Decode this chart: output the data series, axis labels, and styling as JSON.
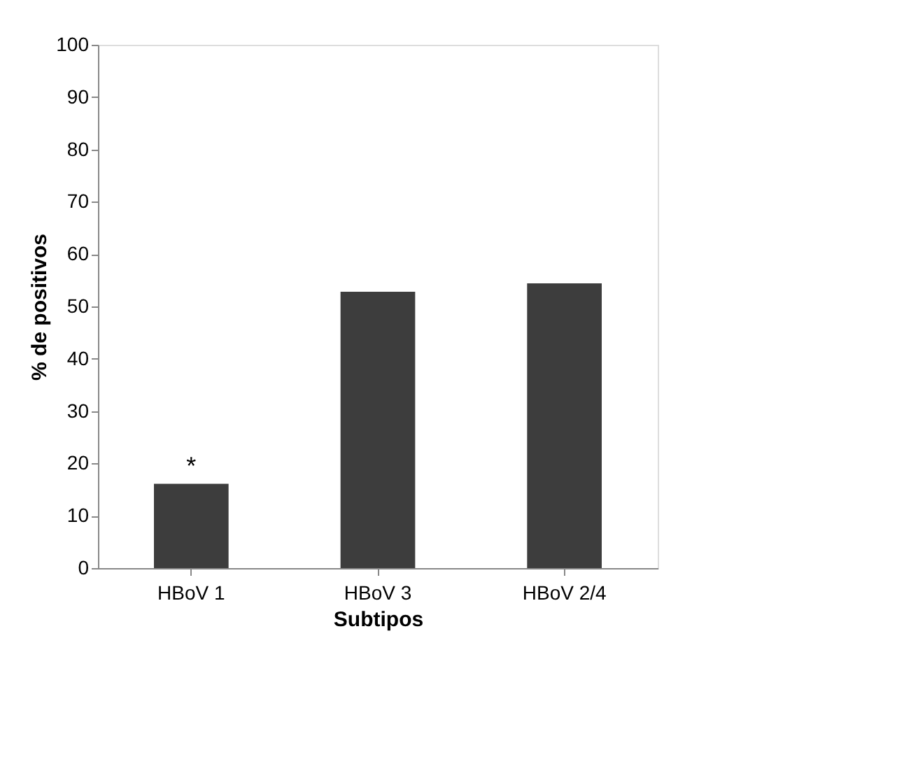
{
  "chart_data": {
    "type": "bar",
    "categories": [
      "HBoV 1",
      "HBoV 3",
      "HBoV 2/4"
    ],
    "values": [
      16.1,
      52.8,
      54.4
    ],
    "color": "#3d3d3d",
    "xlabel": "Subtipos",
    "ylabel": "% de positivos",
    "ylim": [
      0,
      100
    ],
    "yticks": [
      0,
      10,
      20,
      30,
      40,
      50,
      60,
      70,
      80,
      90,
      100
    ],
    "grid": false,
    "legend": false,
    "annotations": [
      {
        "text": "*",
        "x": "HBoV 1",
        "y": 16.1
      }
    ]
  }
}
